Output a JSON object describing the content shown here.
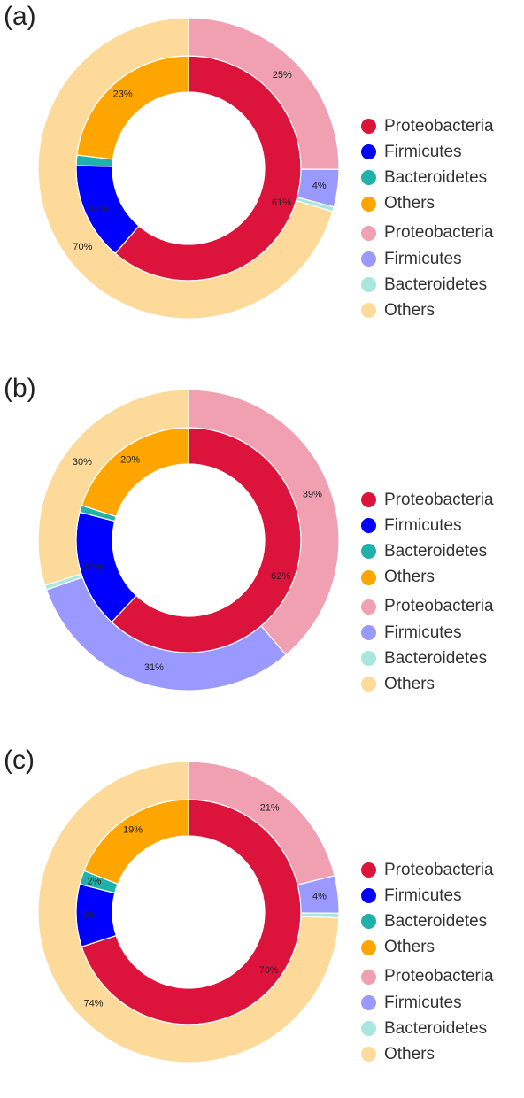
{
  "colors": {
    "inner": [
      "#DC143C",
      "#0000FF",
      "#20B2AA",
      "#FFA500"
    ],
    "outer": [
      "#F0A0B0",
      "#9999FF",
      "#A8E6DE",
      "#FDDA9A"
    ]
  },
  "chart_data": [
    {
      "type": "pie",
      "subtype": "nested-donut",
      "panel_label": "(a)",
      "categories": [
        "Proteobacteria",
        "Firmicutes",
        "Bacteroidetes",
        "Others"
      ],
      "series": [
        {
          "ring": "inner",
          "values": [
            61,
            14,
            1.5,
            23
          ],
          "labels": [
            "61%",
            "14%",
            "",
            "23%"
          ]
        },
        {
          "ring": "outer",
          "values": [
            25,
            4,
            0.5,
            70
          ],
          "labels": [
            "25%",
            "4%",
            "",
            "70%"
          ]
        }
      ],
      "legend": {
        "placement": "right",
        "entries": [
          "Proteobacteria",
          "Firmicutes",
          "Bacteroidetes",
          "Others",
          "Proteobacteria",
          "Firmicutes",
          "Bacteroidetes",
          "Others"
        ]
      }
    },
    {
      "type": "pie",
      "subtype": "nested-donut",
      "panel_label": "(b)",
      "categories": [
        "Proteobacteria",
        "Firmicutes",
        "Bacteroidetes",
        "Others"
      ],
      "series": [
        {
          "ring": "inner",
          "values": [
            62,
            17,
            1,
            20
          ],
          "labels": [
            "62%",
            "17%",
            "",
            "20%"
          ]
        },
        {
          "ring": "outer",
          "values": [
            39,
            31,
            0.5,
            30
          ],
          "labels": [
            "39%",
            "31%",
            "",
            "30%"
          ]
        }
      ],
      "legend": {
        "placement": "right",
        "entries": [
          "Proteobacteria",
          "Firmicutes",
          "Bacteroidetes",
          "Others",
          "Proteobacteria",
          "Firmicutes",
          "Bacteroidetes",
          "Others"
        ]
      }
    },
    {
      "type": "pie",
      "subtype": "nested-donut",
      "panel_label": "(c)",
      "categories": [
        "Proteobacteria",
        "Firmicutes",
        "Bacteroidetes",
        "Others"
      ],
      "series": [
        {
          "ring": "inner",
          "values": [
            70,
            9,
            2,
            19
          ],
          "labels": [
            "70%",
            "9%",
            "2%",
            "19%"
          ]
        },
        {
          "ring": "outer",
          "values": [
            21,
            4,
            0.5,
            74
          ],
          "labels": [
            "21%",
            "4%",
            "",
            "74%"
          ]
        }
      ],
      "legend": {
        "placement": "right",
        "entries": [
          "Proteobacteria",
          "Firmicutes",
          "Bacteroidetes",
          "Others",
          "Proteobacteria",
          "Firmicutes",
          "Bacteroidetes",
          "Others"
        ]
      }
    }
  ]
}
